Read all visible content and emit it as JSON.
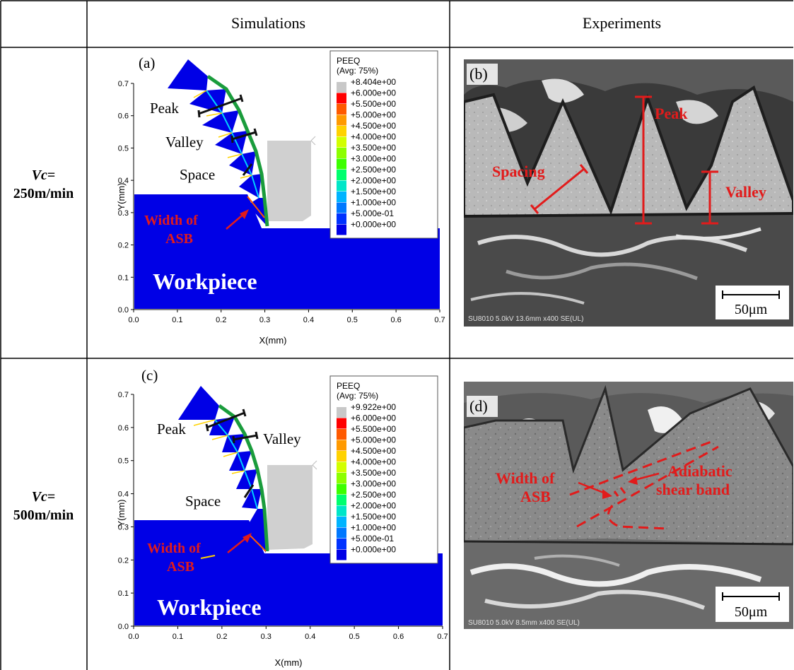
{
  "headers": {
    "simulations": "Simulations",
    "experiments": "Experiments"
  },
  "rows": [
    {
      "label_var": "Vc",
      "label_eq": "=",
      "label_value": "250m/min"
    },
    {
      "label_var": "Vc",
      "label_eq": "=",
      "label_value": "500m/min"
    }
  ],
  "panel_a": {
    "tag": "(a)",
    "annotations": {
      "peak": "Peak",
      "valley": "Valley",
      "space": "Space",
      "asb_line1": "Width of",
      "asb_line2": "ASB",
      "workpiece": "Workpiece"
    },
    "xlabel": "X(mm)",
    "ylabel": "Y(mm)",
    "xticks": [
      "0.0",
      "0.1",
      "0.2",
      "0.3",
      "0.4",
      "0.5",
      "0.6",
      "0.7"
    ],
    "yticks": [
      "0.0",
      "0.1",
      "0.2",
      "0.3",
      "0.4",
      "0.5",
      "0.6",
      "0.7"
    ],
    "legend": {
      "title1": "PEEQ",
      "title2": "(Avg: 75%)",
      "values": [
        "+8.404e+00",
        "+6.000e+00",
        "+5.500e+00",
        "+5.000e+00",
        "+4.500e+00",
        "+4.000e+00",
        "+3.500e+00",
        "+3.000e+00",
        "+2.500e+00",
        "+2.000e+00",
        "+1.500e+00",
        "+1.000e+00",
        "+5.000e-01",
        "+0.000e+00"
      ]
    }
  },
  "panel_c": {
    "tag": "(c)",
    "annotations": {
      "peak": "Peak",
      "valley": "Valley",
      "space": "Space",
      "asb_line1": "Width of",
      "asb_line2": "ASB",
      "workpiece": "Workpiece"
    },
    "xlabel": "X(mm)",
    "ylabel": "Y(mm)",
    "xticks": [
      "0.0",
      "0.1",
      "0.2",
      "0.3",
      "0.4",
      "0.5",
      "0.6",
      "0.7"
    ],
    "yticks": [
      "0.0",
      "0.1",
      "0.2",
      "0.3",
      "0.4",
      "0.5",
      "0.6",
      "0.7"
    ],
    "legend": {
      "title1": "PEEQ",
      "title2": "(Avg: 75%)",
      "values": [
        "+9.922e+00",
        "+6.000e+00",
        "+5.500e+00",
        "+5.000e+00",
        "+4.500e+00",
        "+4.000e+00",
        "+3.500e+00",
        "+3.000e+00",
        "+2.500e+00",
        "+2.000e+00",
        "+1.500e+00",
        "+1.000e+00",
        "+5.000e-01",
        "+0.000e+00"
      ]
    }
  },
  "legend_colors": [
    "#c8c8c8",
    "#ff0000",
    "#ff5a00",
    "#ff9a00",
    "#ffd200",
    "#d2ff00",
    "#8cff00",
    "#3cff00",
    "#00ff6e",
    "#00e6c8",
    "#00b4ff",
    "#0078ff",
    "#0032ff",
    "#0000e6"
  ],
  "panel_b": {
    "tag": "(b)",
    "annotations": {
      "peak": "Peak",
      "spacing": "Spacing",
      "valley": "Valley"
    },
    "scale_bar": "50μm",
    "sem_info": "SU8010 5.0kV 13.6mm x400 SE(UL)"
  },
  "panel_d": {
    "tag": "(d)",
    "annotations": {
      "asb_line1": "Width of",
      "asb_line2": "ASB",
      "adiabatic_line1": "Adiabatic",
      "adiabatic_line2": "shear band"
    },
    "scale_bar": "50μm",
    "sem_info": "SU8010 5.0kV 8.5mm x400 SE(UL)"
  },
  "colors": {
    "workpiece_blue": "#0000e6",
    "annotation_red": "#e21b1b",
    "tool_gray": "#d0d0d0"
  }
}
